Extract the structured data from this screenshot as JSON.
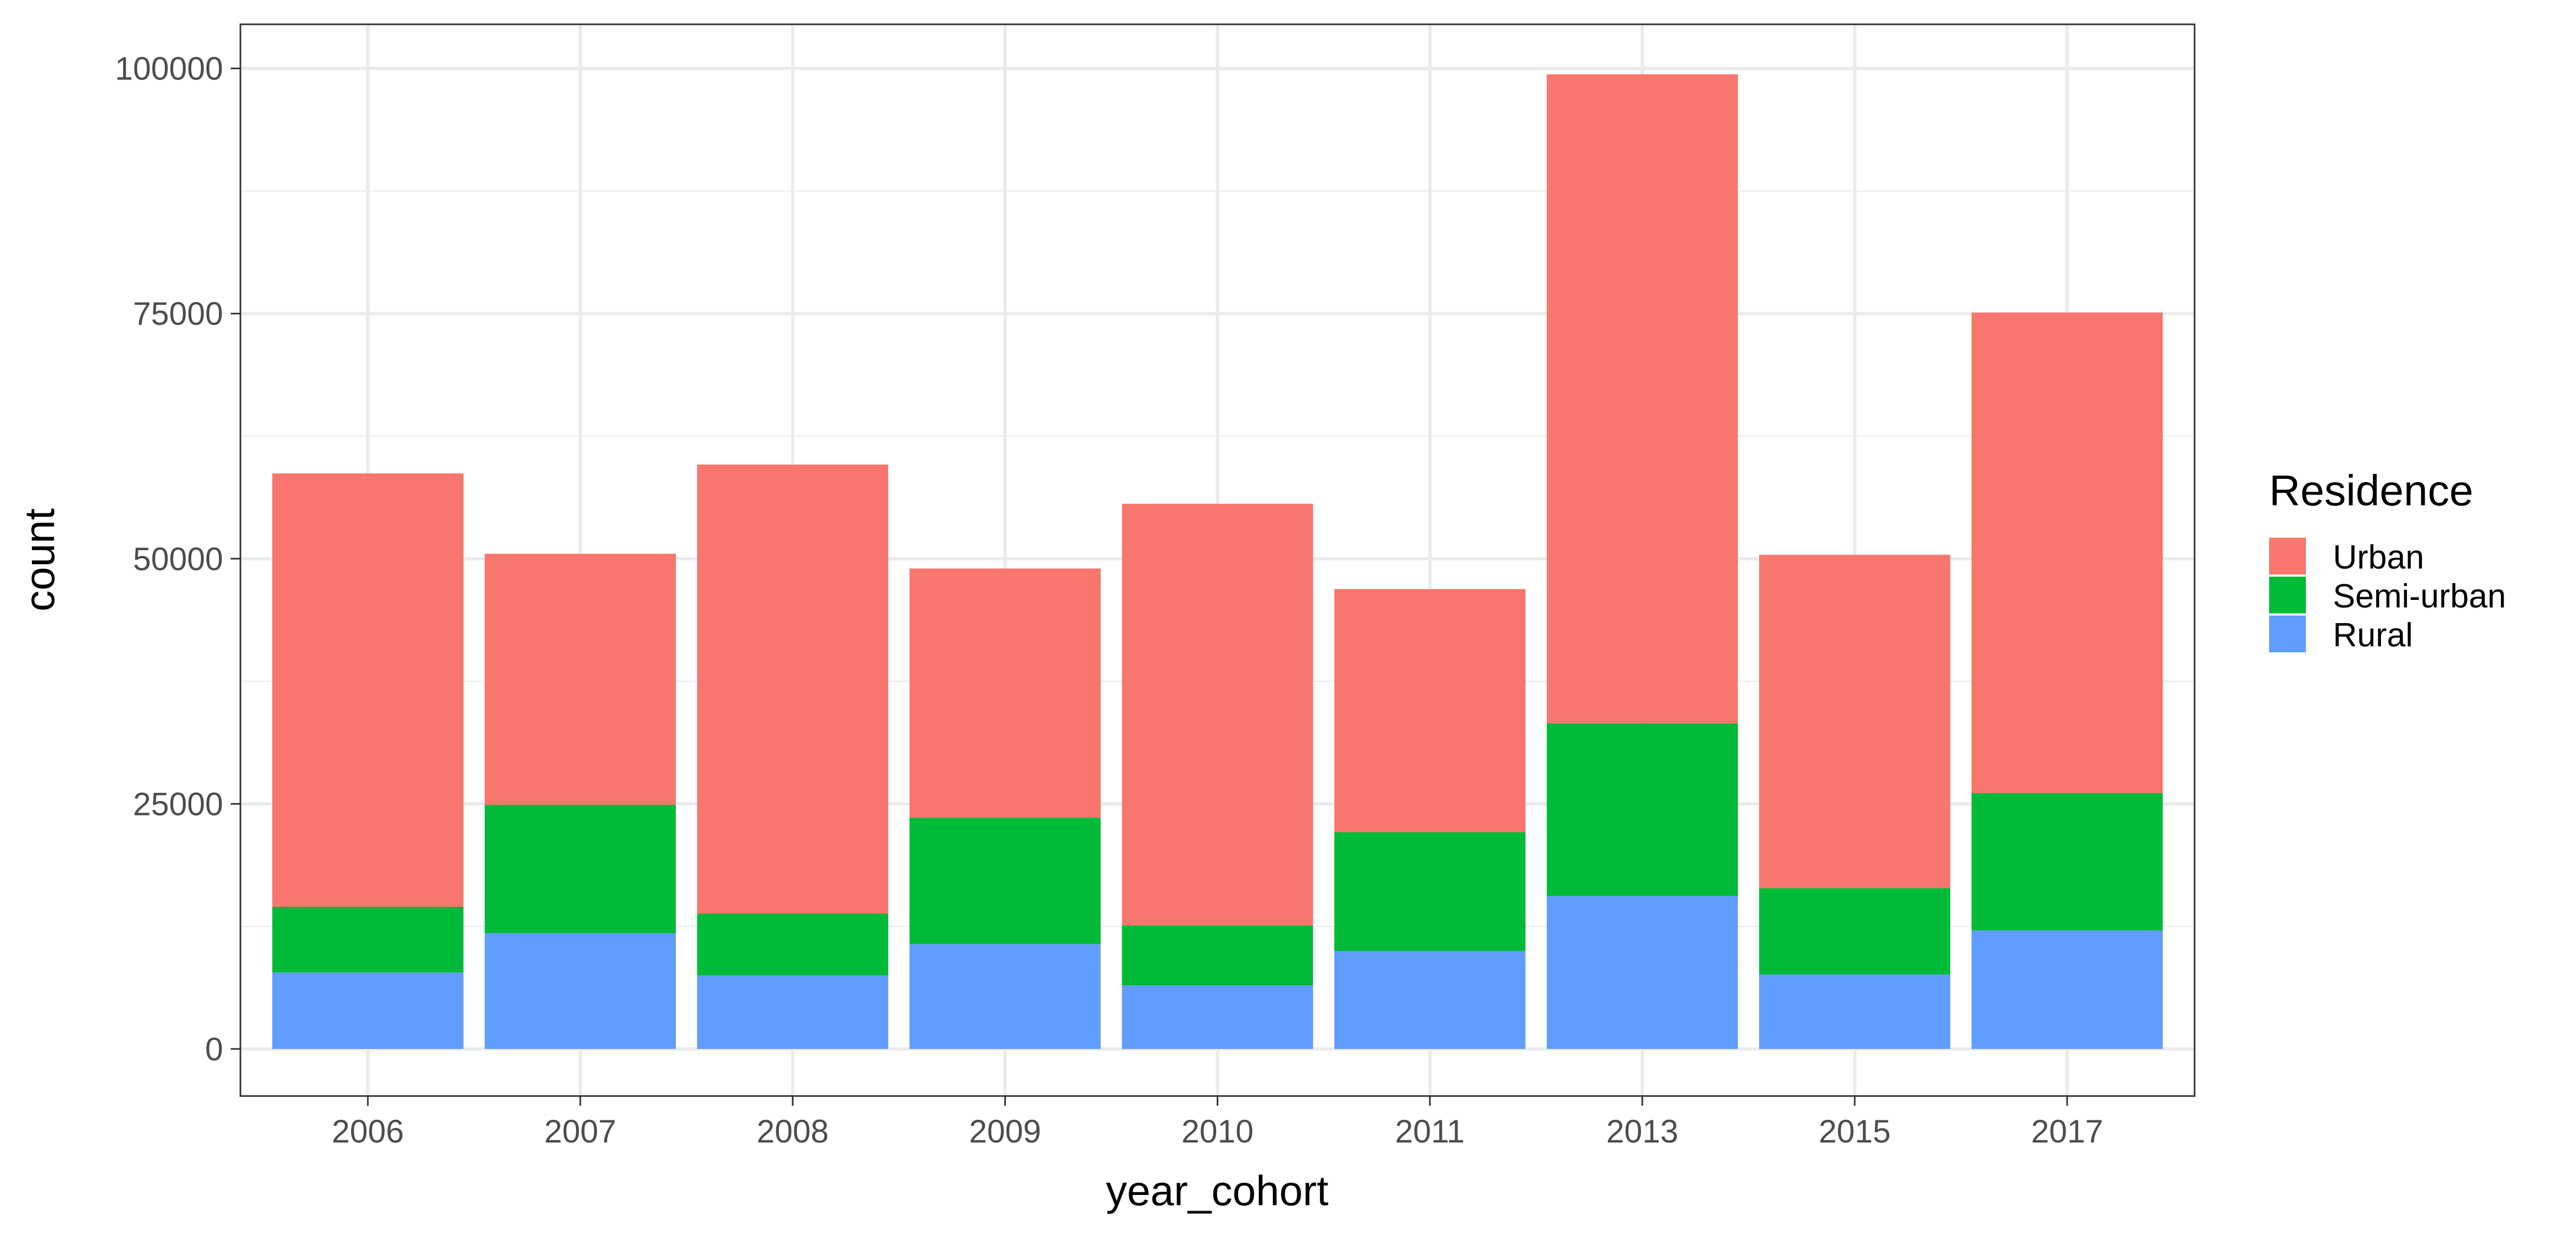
{
  "chart_data": {
    "type": "bar",
    "stacked": true,
    "title": "",
    "xlabel": "year_cohort",
    "ylabel": "count",
    "categories": [
      "2006",
      "2007",
      "2008",
      "2009",
      "2010",
      "2011",
      "2013",
      "2015",
      "2017"
    ],
    "ylim": [
      -4800,
      104500
    ],
    "yticks": [
      0,
      25000,
      50000,
      75000,
      100000
    ],
    "ytick_labels": [
      "0",
      "25000",
      "50000",
      "75000",
      "100000"
    ],
    "grid": true,
    "legend": {
      "title": "Residence",
      "position": "right"
    },
    "series": [
      {
        "name": "Rural",
        "color": "#619CFF",
        "values": [
          7800,
          11800,
          7500,
          10700,
          6500,
          10000,
          15600,
          7600,
          12100
        ]
      },
      {
        "name": "Semi-urban",
        "color": "#00BA38",
        "values": [
          6700,
          13100,
          6300,
          12900,
          6100,
          12100,
          17600,
          8800,
          14000
        ]
      },
      {
        "name": "Urban",
        "color": "#F8766D",
        "values": [
          44200,
          25600,
          45800,
          25400,
          43000,
          24800,
          66200,
          34000,
          49000
        ]
      }
    ],
    "legend_order": [
      "Urban",
      "Semi-urban",
      "Rural"
    ]
  }
}
